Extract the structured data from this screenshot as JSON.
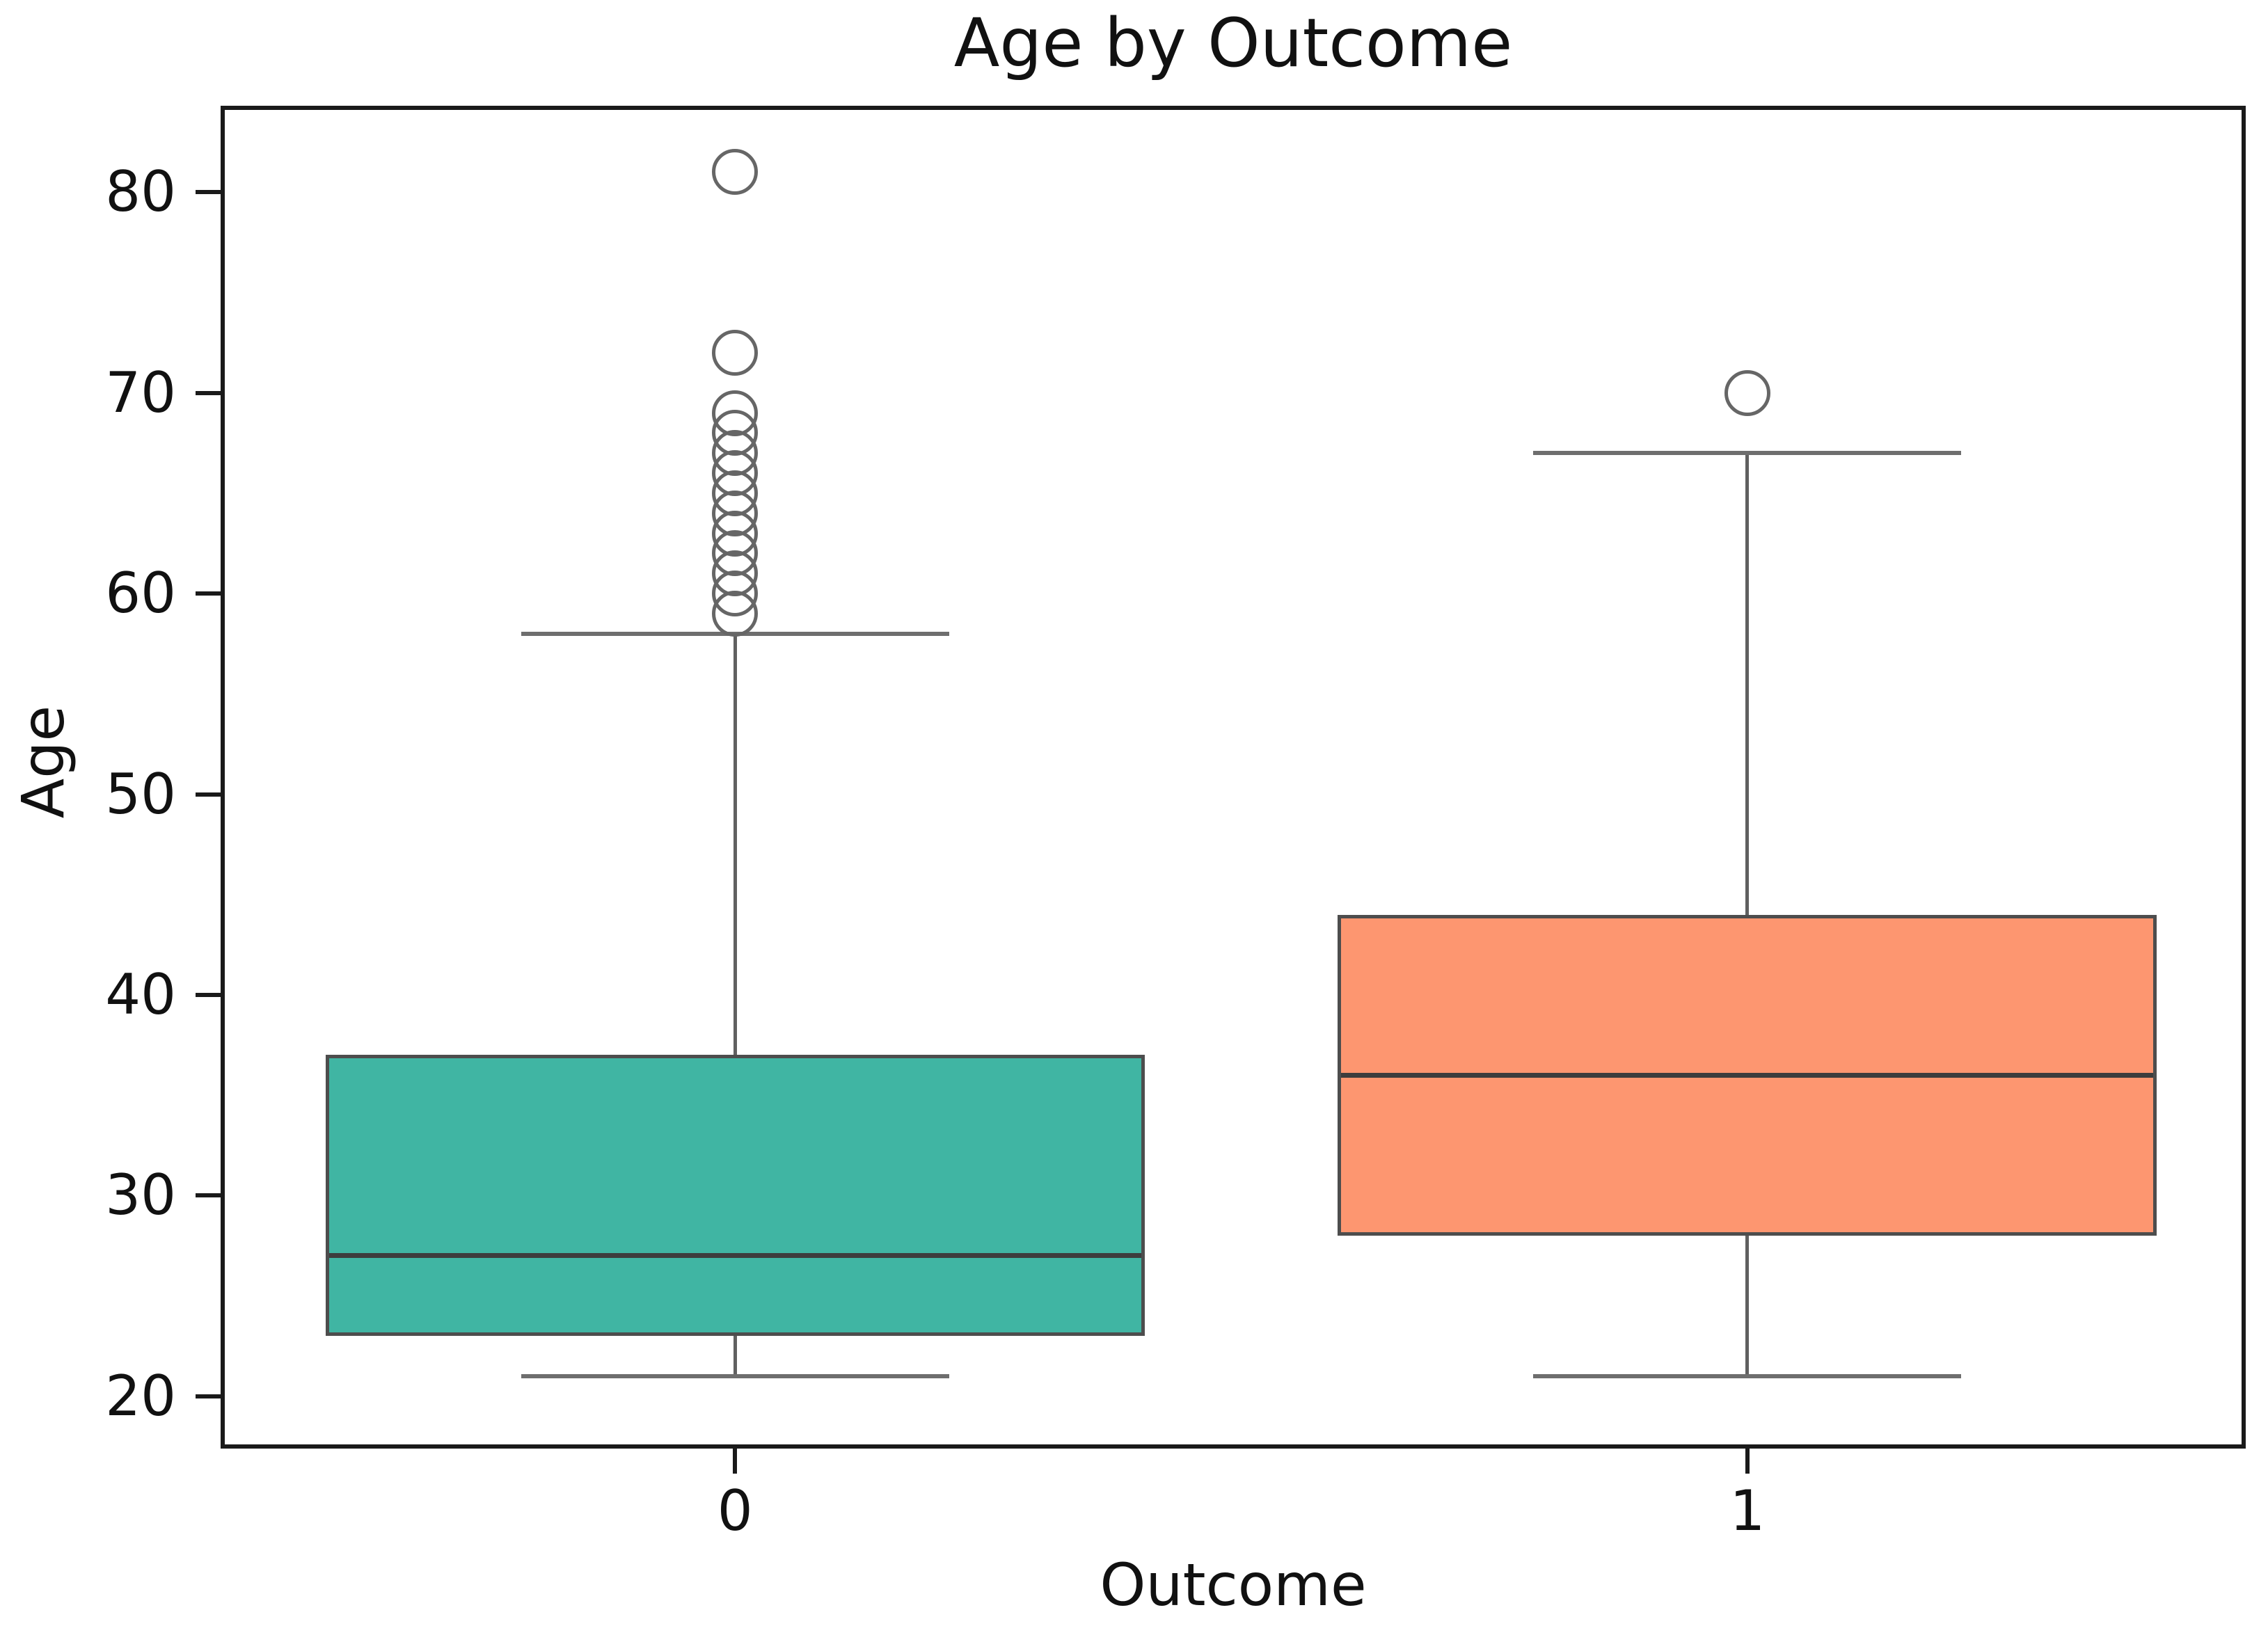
{
  "chart_data": {
    "type": "box",
    "title": "Age by Outcome",
    "xlabel": "Outcome",
    "ylabel": "Age",
    "categories": [
      "0",
      "1"
    ],
    "ylim": [
      17.6,
      84.1
    ],
    "yticks": [
      20,
      30,
      40,
      50,
      60,
      70,
      80
    ],
    "grid": false,
    "legend_position": "none",
    "boxes": [
      {
        "category": "0",
        "whisker_low": 21,
        "q1": 23,
        "median": 27,
        "q3": 37,
        "whisker_high": 58,
        "outliers": [
          59,
          60,
          61,
          62,
          63,
          64,
          65,
          66,
          67,
          68,
          69,
          72,
          81
        ],
        "fill_color": "#40b5a3"
      },
      {
        "category": "1",
        "whisker_low": 21,
        "q1": 28,
        "median": 36,
        "q3": 44,
        "whisker_high": 67,
        "outliers": [
          70
        ],
        "fill_color": "#fd9670"
      }
    ],
    "colors": {
      "box_edge": "#4d4d4d",
      "whisker": "#606060",
      "cap": "#6e6e6e",
      "median": "#3d3d3d",
      "flier_edge": "#666666",
      "spine": "#1a1a1a",
      "text": "#111111",
      "background": "#ffffff"
    }
  }
}
